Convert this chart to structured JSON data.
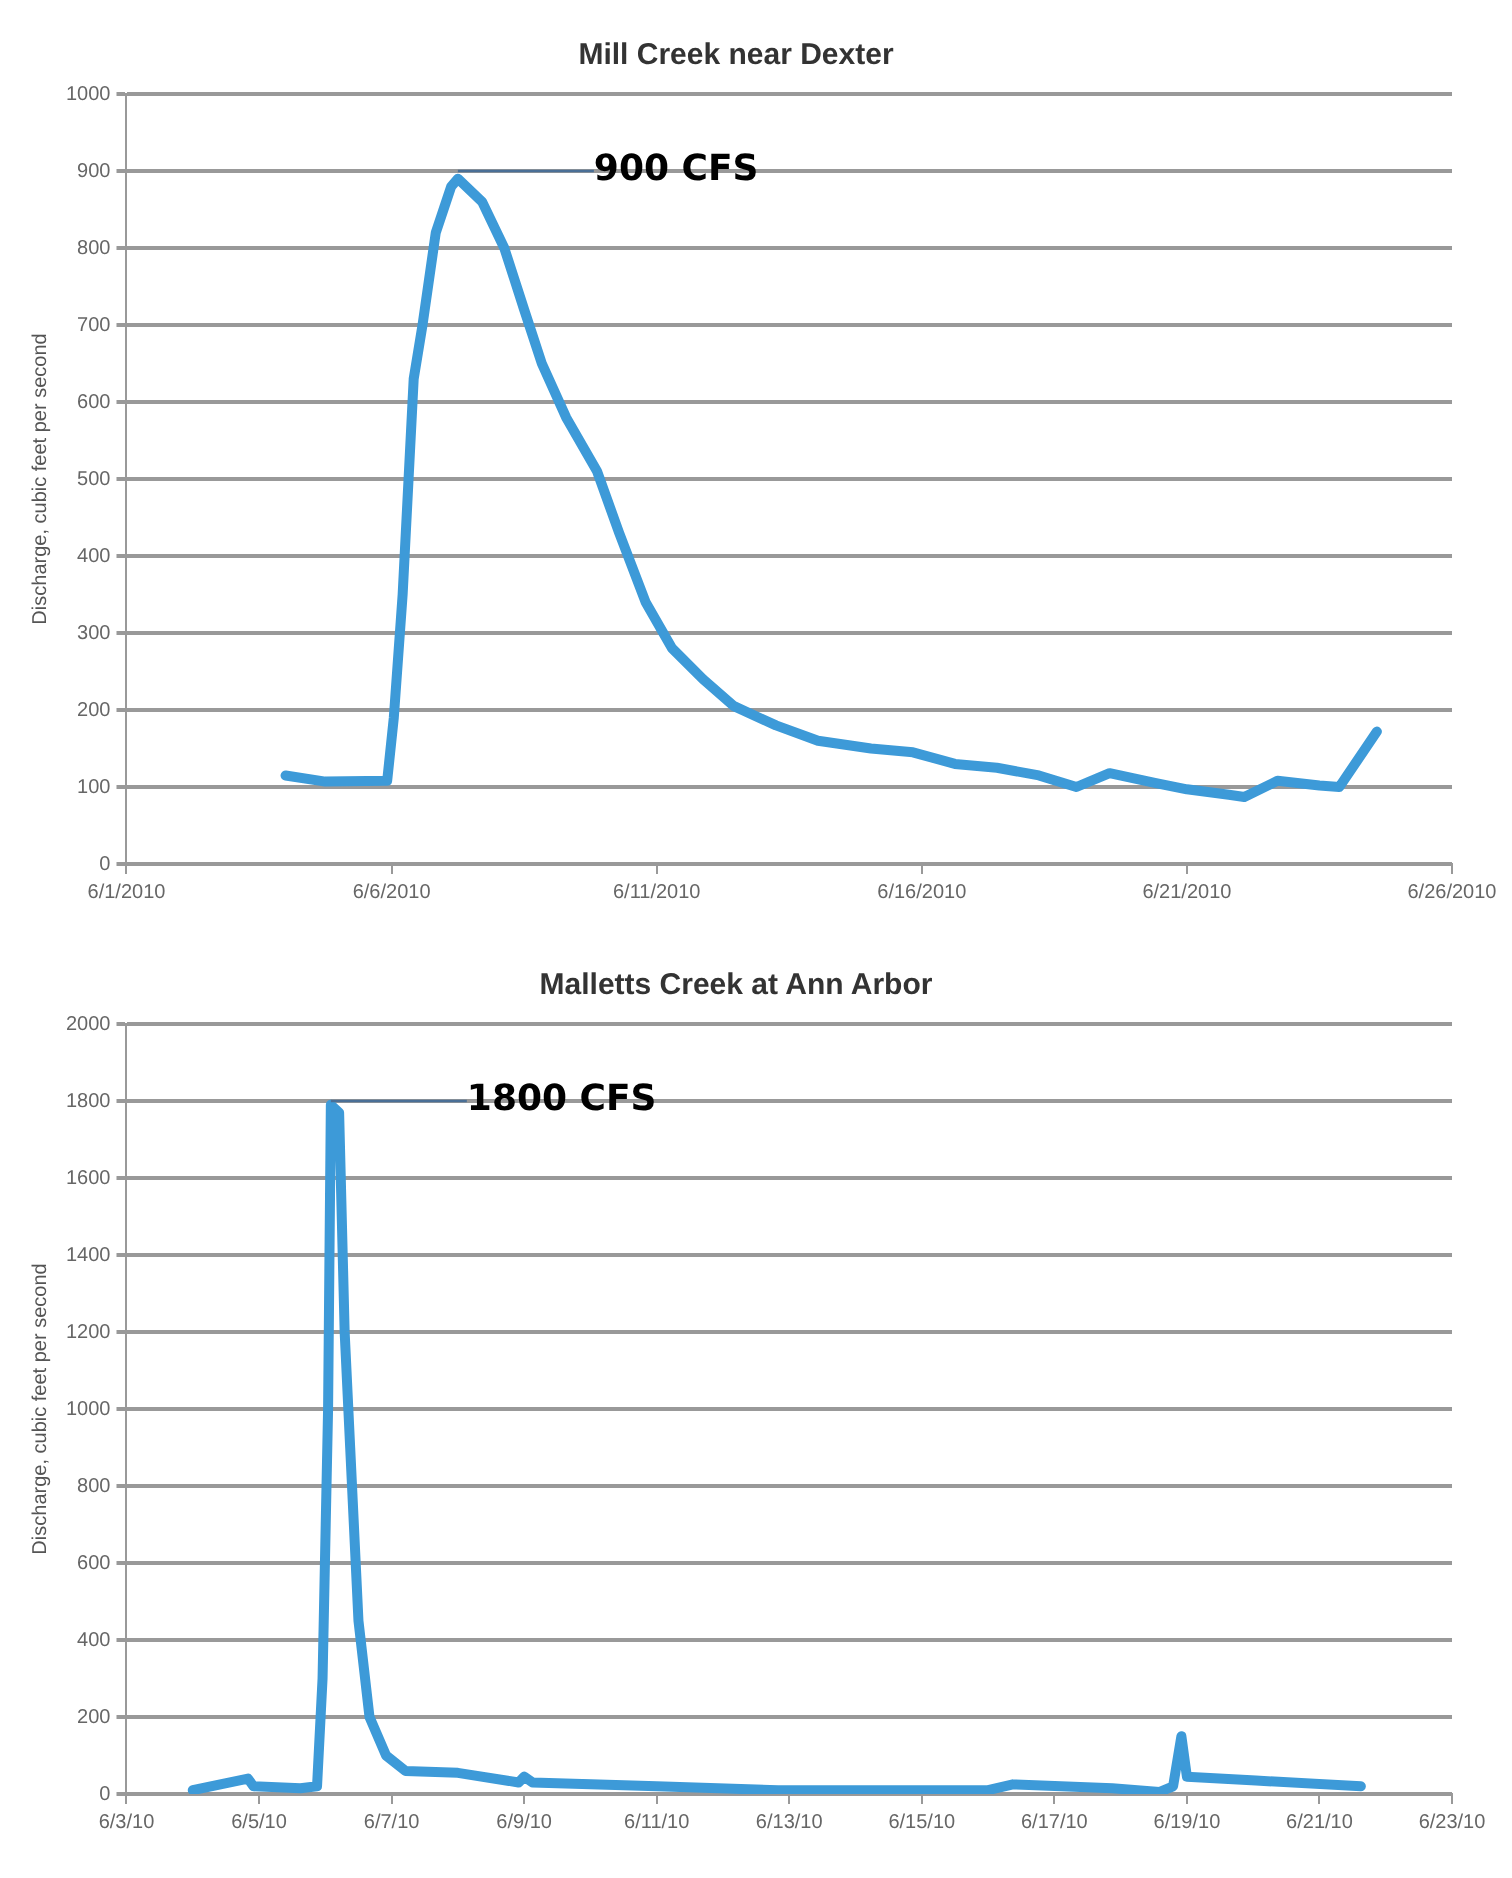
{
  "chart_data": [
    {
      "type": "line",
      "title": "Mill Creek near Dexter",
      "ylabel": "Discharge, cubic feet per second",
      "grid": "y",
      "marker": "none",
      "line_style": "solid",
      "xlim": [
        "2010-06-01",
        "2010-06-26"
      ],
      "xticks": [
        {
          "value": "2010-06-01",
          "label": "6/1/2010"
        },
        {
          "value": "2010-06-06",
          "label": "6/6/2010"
        },
        {
          "value": "2010-06-11",
          "label": "6/11/2010"
        },
        {
          "value": "2010-06-16",
          "label": "6/16/2010"
        },
        {
          "value": "2010-06-21",
          "label": "6/21/2010"
        },
        {
          "value": "2010-06-26",
          "label": "6/26/2010"
        }
      ],
      "ylim": [
        0,
        1000
      ],
      "yticks": [
        0,
        100,
        200,
        300,
        400,
        500,
        600,
        700,
        800,
        900,
        1000
      ],
      "annotations": [
        {
          "text": "900 CFS",
          "x": "2010-06-07T06:00",
          "y": 900
        }
      ],
      "series": [
        {
          "color": "#3d9ad8",
          "x": [
            "2010-06-04T00:00",
            "2010-06-04T18:00",
            "2010-06-05T22:00",
            "2010-06-06T01:00",
            "2010-06-06T05:00",
            "2010-06-06T10:00",
            "2010-06-06T14:00",
            "2010-06-06T20:00",
            "2010-06-07T03:00",
            "2010-06-07T06:00",
            "2010-06-07T17:00",
            "2010-06-08T03:00",
            "2010-06-08T12:00",
            "2010-06-08T20:00",
            "2010-06-09T07:00",
            "2010-06-09T21:00",
            "2010-06-10T07:00",
            "2010-06-10T19:00",
            "2010-06-11T07:00",
            "2010-06-11T21:00",
            "2010-06-12T11:00",
            "2010-06-13T06:00",
            "2010-06-14T01:00",
            "2010-06-15T01:00",
            "2010-06-15T20:00",
            "2010-06-16T15:00",
            "2010-06-17T10:00",
            "2010-06-18T05:00",
            "2010-06-18T22:00",
            "2010-06-19T13:00",
            "2010-06-20T10:00",
            "2010-06-21T00:00",
            "2010-06-21T19:00",
            "2010-06-22T02:00",
            "2010-06-22T17:00",
            "2010-06-23T12:00",
            "2010-06-23T21:00",
            "2010-06-24T14:00"
          ],
          "values": [
            115,
            107,
            108,
            190,
            350,
            630,
            700,
            820,
            880,
            890,
            860,
            800,
            720,
            650,
            580,
            510,
            430,
            340,
            280,
            240,
            205,
            180,
            160,
            150,
            145,
            130,
            125,
            115,
            100,
            118,
            105,
            97,
            90,
            87,
            108,
            102,
            100,
            172
          ]
        }
      ]
    },
    {
      "type": "line",
      "title": "Malletts Creek at Ann Arbor",
      "ylabel": "Discharge, cubic feet per second",
      "grid": "y",
      "marker": "none",
      "line_style": "solid",
      "xlim": [
        "2010-06-03",
        "2010-06-23"
      ],
      "xticks": [
        {
          "value": "2010-06-03",
          "label": "6/3/10"
        },
        {
          "value": "2010-06-05",
          "label": "6/5/10"
        },
        {
          "value": "2010-06-07",
          "label": "6/7/10"
        },
        {
          "value": "2010-06-09",
          "label": "6/9/10"
        },
        {
          "value": "2010-06-11",
          "label": "6/11/10"
        },
        {
          "value": "2010-06-13",
          "label": "6/13/10"
        },
        {
          "value": "2010-06-15",
          "label": "6/15/10"
        },
        {
          "value": "2010-06-17",
          "label": "6/17/10"
        },
        {
          "value": "2010-06-19",
          "label": "6/19/10"
        },
        {
          "value": "2010-06-21",
          "label": "6/21/10"
        },
        {
          "value": "2010-06-23",
          "label": "6/23/10"
        }
      ],
      "ylim": [
        0,
        2000
      ],
      "yticks": [
        0,
        200,
        400,
        600,
        800,
        1000,
        1200,
        1400,
        1600,
        1800,
        2000
      ],
      "annotations": [
        {
          "text": "1800 CFS",
          "x": "2010-06-06T02:00",
          "y": 1800
        }
      ],
      "series": [
        {
          "color": "#3d9ad8",
          "x": [
            "2010-06-04T00:00",
            "2010-06-04T20:00",
            "2010-06-04T22:00",
            "2010-06-05T15:00",
            "2010-06-05T21:00",
            "2010-06-05T23:00",
            "2010-06-06T01:00",
            "2010-06-06T02:00",
            "2010-06-06T05:00",
            "2010-06-06T07:00",
            "2010-06-06T09:00",
            "2010-06-06T12:00",
            "2010-06-06T16:00",
            "2010-06-06T22:00",
            "2010-06-07T05:00",
            "2010-06-08T00:00",
            "2010-06-08T22:00",
            "2010-06-09T00:00",
            "2010-06-09T03:00",
            "2010-06-11T00:00",
            "2010-06-12T20:00",
            "2010-06-16T00:00",
            "2010-06-16T09:00",
            "2010-06-17T21:00",
            "2010-06-18T14:00",
            "2010-06-18T19:00",
            "2010-06-18T22:00",
            "2010-06-19T00:00",
            "2010-06-20T01:00",
            "2010-06-21T15:00"
          ],
          "values": [
            10,
            40,
            20,
            15,
            20,
            300,
            1000,
            1790,
            1770,
            1200,
            900,
            450,
            200,
            100,
            60,
            55,
            30,
            45,
            30,
            20,
            10,
            10,
            25,
            15,
            5,
            20,
            150,
            45,
            35,
            20
          ]
        }
      ]
    }
  ]
}
